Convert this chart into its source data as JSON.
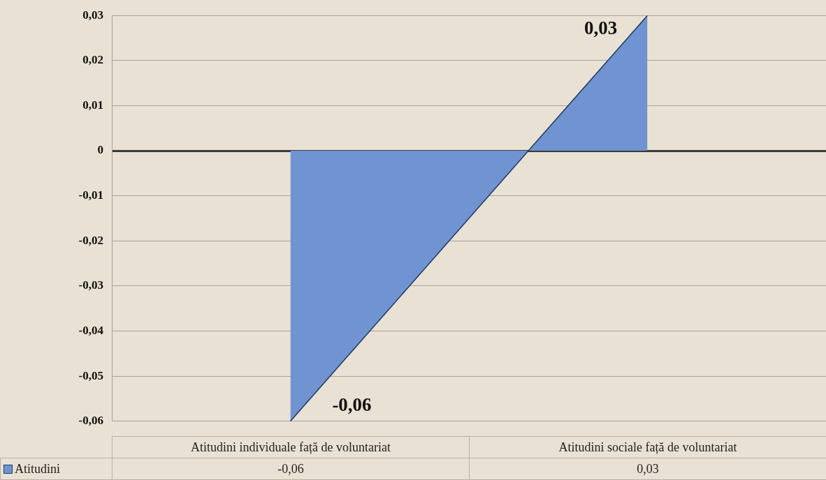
{
  "chart_data": {
    "type": "area",
    "categories": [
      "Atitudini individuale față de voluntariat",
      "Atitudini sociale față de voluntariat"
    ],
    "series": [
      {
        "name": "Atitudini",
        "color": "#7093d1",
        "values": [
          -0.06,
          0.03
        ],
        "value_labels": [
          "-0,06",
          "0,03"
        ]
      }
    ],
    "ylim": [
      -0.06,
      0.03
    ],
    "yticks": [
      {
        "value": -0.06,
        "label": "-0,06"
      },
      {
        "value": -0.05,
        "label": "-0,05"
      },
      {
        "value": -0.04,
        "label": "-0,04"
      },
      {
        "value": -0.03,
        "label": "-0,03"
      },
      {
        "value": -0.02,
        "label": "-0,02"
      },
      {
        "value": -0.01,
        "label": "-0,01"
      },
      {
        "value": 0,
        "label": "0"
      },
      {
        "value": 0.01,
        "label": "0,01"
      },
      {
        "value": 0.02,
        "label": "0,02"
      },
      {
        "value": 0.03,
        "label": "0,03"
      }
    ],
    "grid": "y",
    "legend": "bottom",
    "data_labels": true
  }
}
